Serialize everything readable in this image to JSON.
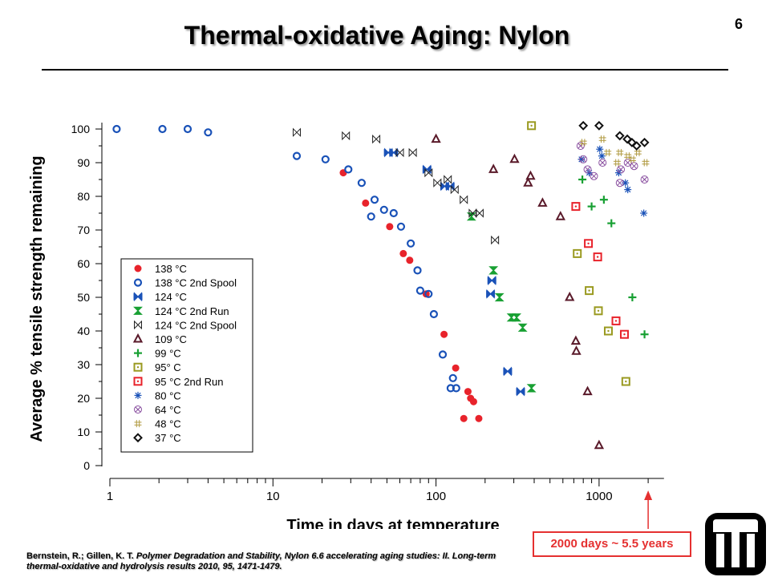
{
  "slide": {
    "page_number": "6",
    "title": "Thermal-oxidative Aging: Nylon",
    "citation_authors": "Bernstein, R.; Gillen, K. T.",
    "citation_work": "Polymer Degradation and Stability,  Nylon 6.6 accelerating aging studies: II. Long-term thermal-oxidative and hydrolysis results 2010, 95, 1471-1479.",
    "callout": "2000 days ~ 5.5 years",
    "logo_icon": "sandia-thunderbird-icon"
  },
  "chart_data": {
    "type": "scatter",
    "xlabel": "Time in days at temperature",
    "ylabel": "Average % tensile strength remaining",
    "x_scale": "log",
    "xlim": [
      1,
      2500
    ],
    "ylim": [
      0,
      100
    ],
    "x_ticks": [
      1,
      10,
      100,
      1000
    ],
    "x_tick_labels": [
      "1",
      "10",
      "100",
      "1000"
    ],
    "y_ticks": [
      0,
      10,
      20,
      30,
      40,
      50,
      60,
      70,
      80,
      90,
      100
    ],
    "y_tick_labels": [
      "0",
      "10",
      "20",
      "30",
      "40",
      "50",
      "60",
      "70",
      "80",
      "90",
      "100"
    ],
    "grid": false,
    "legend_position": "center-left",
    "callout_arrow_x": 2000,
    "series": [
      {
        "name": "138 °C",
        "marker": "filled-circle",
        "color": "#e8232b",
        "points": [
          [
            27,
            87
          ],
          [
            37,
            78
          ],
          [
            52,
            71
          ],
          [
            63,
            63
          ],
          [
            69,
            61
          ],
          [
            87,
            51
          ],
          [
            112,
            39
          ],
          [
            132,
            29
          ],
          [
            148,
            14
          ],
          [
            157,
            22
          ],
          [
            163,
            20
          ],
          [
            170,
            19
          ],
          [
            183,
            14
          ]
        ]
      },
      {
        "name": "138 °C 2nd Spool",
        "marker": "open-circle",
        "color": "#1a52b8",
        "points": [
          [
            1.1,
            100
          ],
          [
            2.1,
            100
          ],
          [
            3,
            100
          ],
          [
            4,
            99
          ],
          [
            14,
            92
          ],
          [
            21,
            91
          ],
          [
            29,
            88
          ],
          [
            35,
            84
          ],
          [
            40,
            74
          ],
          [
            42,
            79
          ],
          [
            48,
            76
          ],
          [
            55,
            75
          ],
          [
            61,
            71
          ],
          [
            70,
            66
          ],
          [
            77,
            58
          ],
          [
            80,
            52
          ],
          [
            90,
            51
          ],
          [
            97,
            45
          ],
          [
            110,
            33
          ],
          [
            123,
            23
          ],
          [
            127,
            26
          ],
          [
            133,
            23
          ]
        ]
      },
      {
        "name": "124 °C",
        "marker": "bowtie-filled",
        "color": "#1a52b8",
        "points": [
          [
            51,
            93
          ],
          [
            55,
            93
          ],
          [
            88,
            88
          ],
          [
            113,
            83
          ],
          [
            122,
            83
          ],
          [
            216,
            51
          ],
          [
            220,
            55
          ],
          [
            275,
            28
          ],
          [
            330,
            22
          ]
        ]
      },
      {
        "name": "124 °C 2nd Run",
        "marker": "hourglass-filled",
        "color": "#18a033",
        "points": [
          [
            165,
            74
          ],
          [
            225,
            58
          ],
          [
            245,
            50
          ],
          [
            290,
            44
          ],
          [
            312,
            44
          ],
          [
            340,
            41
          ],
          [
            385,
            23
          ]
        ]
      },
      {
        "name": "124 °C 2nd Spool",
        "marker": "bowtie-open",
        "color": "#222222",
        "points": [
          [
            14,
            99
          ],
          [
            28,
            98
          ],
          [
            43,
            97
          ],
          [
            60,
            93
          ],
          [
            72,
            93
          ],
          [
            90,
            87
          ],
          [
            102,
            84
          ],
          [
            118,
            85
          ],
          [
            130,
            82
          ],
          [
            148,
            79
          ],
          [
            168,
            75
          ],
          [
            185,
            75
          ],
          [
            230,
            67
          ]
        ]
      },
      {
        "name": "109 °C",
        "marker": "open-triangle",
        "color": "#5a1a2a",
        "points": [
          [
            100,
            97
          ],
          [
            225,
            88
          ],
          [
            303,
            91
          ],
          [
            367,
            84
          ],
          [
            380,
            86
          ],
          [
            450,
            78
          ],
          [
            580,
            74
          ],
          [
            660,
            50
          ],
          [
            720,
            37
          ],
          [
            725,
            34
          ],
          [
            850,
            22
          ],
          [
            1000,
            6
          ]
        ]
      },
      {
        "name": "99 °C",
        "marker": "plus",
        "color": "#18a033",
        "points": [
          [
            790,
            85
          ],
          [
            900,
            77
          ],
          [
            1070,
            79
          ],
          [
            1190,
            72
          ],
          [
            1600,
            50
          ],
          [
            1900,
            39
          ]
        ]
      },
      {
        "name": "95° C",
        "marker": "dotted-square",
        "color": "#9a9a20",
        "points": [
          [
            385,
            101
          ],
          [
            735,
            63
          ],
          [
            870,
            52
          ],
          [
            990,
            46
          ],
          [
            1140,
            40
          ],
          [
            1460,
            25
          ]
        ]
      },
      {
        "name": "95 °C 2nd Run",
        "marker": "dotted-square",
        "color": "#e8232b",
        "points": [
          [
            720,
            77
          ],
          [
            860,
            66
          ],
          [
            980,
            62
          ],
          [
            1270,
            43
          ],
          [
            1430,
            39
          ]
        ]
      },
      {
        "name": "80 °C",
        "marker": "asterisk",
        "color": "#1a52b8",
        "points": [
          [
            780,
            91
          ],
          [
            870,
            87
          ],
          [
            1010,
            94
          ],
          [
            1040,
            92
          ],
          [
            1320,
            87
          ],
          [
            1450,
            84
          ],
          [
            1500,
            82
          ],
          [
            1880,
            75
          ]
        ]
      },
      {
        "name": "64 °C",
        "marker": "circle-x",
        "color": "#8a50a0",
        "points": [
          [
            770,
            95
          ],
          [
            800,
            91
          ],
          [
            850,
            88
          ],
          [
            930,
            86
          ],
          [
            1050,
            90
          ],
          [
            1340,
            84
          ],
          [
            1360,
            88
          ],
          [
            1500,
            90
          ],
          [
            1640,
            89
          ],
          [
            1900,
            85
          ]
        ]
      },
      {
        "name": "48 °C",
        "marker": "hash",
        "color": "#b09a40",
        "points": [
          [
            800,
            96
          ],
          [
            1050,
            97
          ],
          [
            1130,
            93
          ],
          [
            1290,
            90
          ],
          [
            1340,
            93
          ],
          [
            1500,
            92
          ],
          [
            1600,
            91
          ],
          [
            1730,
            93
          ],
          [
            1930,
            90
          ]
        ]
      },
      {
        "name": "37 °C",
        "marker": "open-diamond",
        "color": "#111111",
        "points": [
          [
            800,
            101
          ],
          [
            1000,
            101
          ],
          [
            1340,
            98
          ],
          [
            1490,
            97
          ],
          [
            1590,
            96
          ],
          [
            1700,
            95
          ],
          [
            1900,
            96
          ]
        ]
      }
    ]
  }
}
